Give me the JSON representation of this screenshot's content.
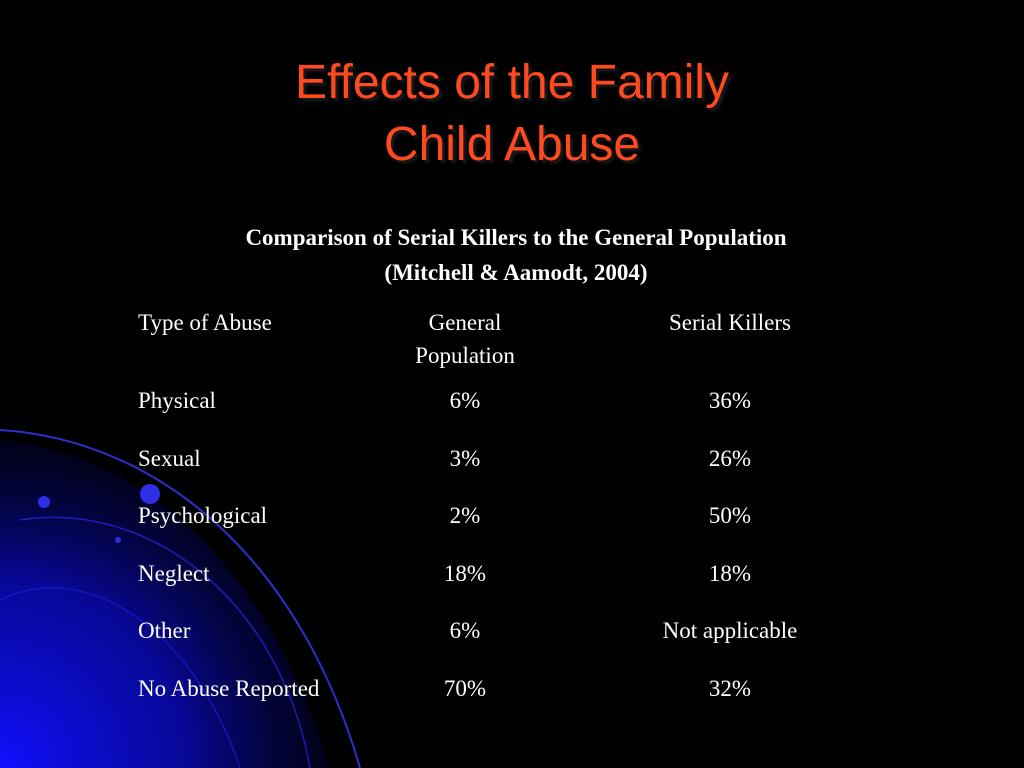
{
  "slide": {
    "title_line1": "Effects of the Family",
    "title_line2": "Child Abuse",
    "caption_line1": "Comparison of Serial Killers to the General Population",
    "caption_line2": "(Mitchell & Aamodt, 2004)",
    "colors": {
      "background": "#000000",
      "title": "#ff4a1f",
      "text": "#ffffff",
      "accent_blue": "#1a1aff"
    }
  },
  "table": {
    "headers": {
      "type": "Type of Abuse",
      "general_line1": "General",
      "general_line2": "Population",
      "serial": "Serial Killers"
    },
    "rows": [
      {
        "type": "Physical",
        "general": "6%",
        "serial": "36%"
      },
      {
        "type": "Sexual",
        "general": "3%",
        "serial": "26%"
      },
      {
        "type": "Psychological",
        "general": "2%",
        "serial": "50%"
      },
      {
        "type": "Neglect",
        "general": "18%",
        "serial": "18%"
      },
      {
        "type": "Other",
        "general": "6%",
        "serial": "Not applicable"
      },
      {
        "type": "No Abuse Reported",
        "general": "70%",
        "serial": "32%"
      }
    ]
  }
}
